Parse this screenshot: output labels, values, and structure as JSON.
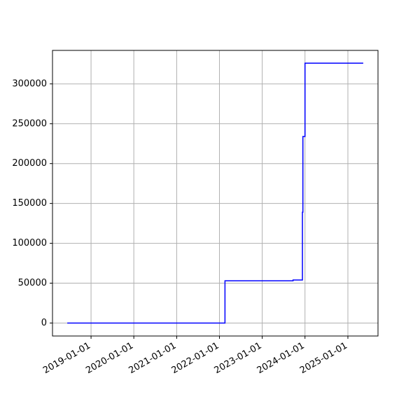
{
  "chart_data": {
    "type": "line",
    "x": [
      "2018-06-12",
      "2022-02-17",
      "2022-02-17",
      "2023-09-21",
      "2023-09-21",
      "2023-12-10",
      "2023-12-10",
      "2023-12-14",
      "2023-12-14",
      "2024-01-01",
      "2024-01-01",
      "2025-05-12"
    ],
    "series": [
      {
        "color": "#0000ff",
        "values": [
          0,
          0,
          53000,
          53000,
          54000,
          54000,
          139000,
          139000,
          234000,
          234000,
          326000,
          326000
        ]
      }
    ],
    "xlim": [
      "2018-02-06",
      "2025-09-15"
    ],
    "xticks": [
      "2019-01-01",
      "2020-01-01",
      "2021-01-01",
      "2022-01-01",
      "2023-01-01",
      "2024-01-01",
      "2025-01-01"
    ],
    "ylim": [
      -16300,
      342000
    ],
    "yticks": [
      0,
      50000,
      100000,
      150000,
      200000,
      250000,
      300000
    ],
    "grid": true
  }
}
